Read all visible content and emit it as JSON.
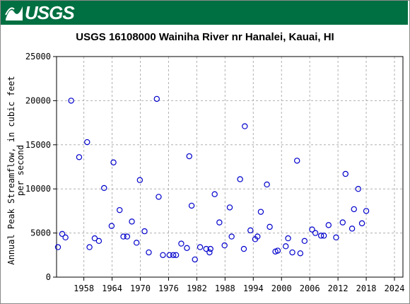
{
  "brand": {
    "logo_text": "USGS",
    "banner_color": "#006f41"
  },
  "chart_data": {
    "type": "scatter",
    "title": "USGS 16108000 Wainiha River nr Hanalei, Kauai, HI",
    "xlabel": "",
    "ylabel_lines": [
      "Annual Peak Streamflow, in cubic feet",
      "per second"
    ],
    "xlim": [
      1952.2,
      2025.8
    ],
    "ylim": [
      0,
      25000
    ],
    "xticks": [
      1958,
      1964,
      1970,
      1976,
      1982,
      1988,
      1994,
      2000,
      2006,
      2012,
      2018,
      2024
    ],
    "yticks": [
      0,
      5000,
      10000,
      15000,
      20000,
      25000
    ],
    "grid": true,
    "marker": "open-circle",
    "marker_color": "#0000cc",
    "series": [
      {
        "points": [
          [
            1952.5,
            3400
          ],
          [
            1953.4,
            4900
          ],
          [
            1954.1,
            4500
          ],
          [
            1955.3,
            20000
          ],
          [
            1957.0,
            13600
          ],
          [
            1958.7,
            15300
          ],
          [
            1959.2,
            3400
          ],
          [
            1960.3,
            4400
          ],
          [
            1961.2,
            4100
          ],
          [
            1962.3,
            10100
          ],
          [
            1963.9,
            5800
          ],
          [
            1964.3,
            13000
          ],
          [
            1965.6,
            7600
          ],
          [
            1966.4,
            4600
          ],
          [
            1967.2,
            4600
          ],
          [
            1968.2,
            6300
          ],
          [
            1969.2,
            3900
          ],
          [
            1969.9,
            11000
          ],
          [
            1970.9,
            5200
          ],
          [
            1971.8,
            2800
          ],
          [
            1973.5,
            20200
          ],
          [
            1973.9,
            9100
          ],
          [
            1974.8,
            2500
          ],
          [
            1976.2,
            2500
          ],
          [
            1977.0,
            2500
          ],
          [
            1977.6,
            2500
          ],
          [
            1978.7,
            3800
          ],
          [
            1979.9,
            3300
          ],
          [
            1980.4,
            13700
          ],
          [
            1980.9,
            8100
          ],
          [
            1981.6,
            2000
          ],
          [
            1982.7,
            3400
          ],
          [
            1984.0,
            3200
          ],
          [
            1984.7,
            2800
          ],
          [
            1984.9,
            3200
          ],
          [
            1985.8,
            9400
          ],
          [
            1986.8,
            6200
          ],
          [
            1987.9,
            3600
          ],
          [
            1989.0,
            7900
          ],
          [
            1989.4,
            4600
          ],
          [
            1991.2,
            11100
          ],
          [
            1992.0,
            3200
          ],
          [
            1992.2,
            17100
          ],
          [
            1993.4,
            5300
          ],
          [
            1994.4,
            4300
          ],
          [
            1994.9,
            4600
          ],
          [
            1995.6,
            7400
          ],
          [
            1996.9,
            10500
          ],
          [
            1997.5,
            5700
          ],
          [
            1998.7,
            2900
          ],
          [
            1999.2,
            3000
          ],
          [
            2000.9,
            3500
          ],
          [
            2001.4,
            4400
          ],
          [
            2002.3,
            2800
          ],
          [
            2003.3,
            13200
          ],
          [
            2004.0,
            2700
          ],
          [
            2004.9,
            4100
          ],
          [
            2006.5,
            5400
          ],
          [
            2007.2,
            5000
          ],
          [
            2008.4,
            4700
          ],
          [
            2009.0,
            4700
          ],
          [
            2010.0,
            5900
          ],
          [
            2011.6,
            4500
          ],
          [
            2013.0,
            6200
          ],
          [
            2013.6,
            11700
          ],
          [
            2015.0,
            5500
          ],
          [
            2015.4,
            7700
          ],
          [
            2016.3,
            10000
          ],
          [
            2017.1,
            6100
          ],
          [
            2018.0,
            7500
          ]
        ]
      }
    ]
  }
}
